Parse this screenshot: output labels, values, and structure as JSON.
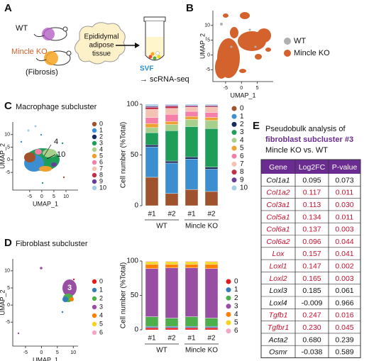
{
  "panel_labels": [
    "A",
    "B",
    "C",
    "D",
    "E"
  ],
  "schematic": {
    "wt": "WT",
    "ko": "Mincle KO",
    "fibrosis": "(Fibrosis)",
    "tissue": [
      "Epididymal",
      "adipose",
      "tissue"
    ],
    "svf": "SVF",
    "seq": "→ scRNA-seq"
  },
  "umaps": [
    {
      "xlabel": "UMAP_1",
      "ylabel": "UMAP_2",
      "xlim": [
        -9,
        10
      ],
      "ylim": [
        -9,
        15
      ],
      "xticks": [
        -5,
        0,
        5
      ],
      "yticks": [
        -5,
        0,
        5,
        10
      ],
      "legend": [
        {
          "name": "WT",
          "color": "#b0b0b0"
        },
        {
          "name": "Mincle KO",
          "color": "#d4622c"
        }
      ]
    },
    {
      "title": "Macrophage subcluster",
      "xlabel": "UMAP_1",
      "ylabel": "UMAP_2",
      "xlim": [
        -12,
        15
      ],
      "ylim": [
        -12,
        15
      ],
      "xticks": [
        -5,
        0,
        5,
        10
      ],
      "yticks": [
        -5,
        0,
        5,
        10
      ],
      "annotations": [
        "4",
        "10"
      ]
    },
    {
      "title": "Fibroblast subcluster",
      "xlabel": "UMAP_1",
      "ylabel": "UMAP_2",
      "xlim": [
        -9,
        11.5
      ],
      "ylim": [
        -12,
        13.5
      ],
      "xticks": [
        -5,
        0,
        5,
        10
      ],
      "yticks": [
        -5,
        0,
        5,
        10
      ],
      "annotations": [
        "3"
      ]
    }
  ],
  "chart_data": [
    {
      "type": "stacked_bar",
      "ylabel": "Cell number (%Total)",
      "categories": [
        "#1",
        "#2",
        "#1",
        "#2"
      ],
      "groups": [
        "WT",
        "Mincle KO"
      ],
      "ylim": [
        0,
        100
      ],
      "yticks": [
        0,
        50,
        100
      ],
      "legend": "right",
      "series": [
        {
          "name": "0",
          "color": "#a0522d",
          "values": [
            28,
            12,
            16,
            14
          ]
        },
        {
          "name": "1",
          "color": "#3b8fd0",
          "values": [
            30,
            30,
            30,
            22
          ]
        },
        {
          "name": "2",
          "color": "#1a2a5a",
          "values": [
            2,
            2,
            2,
            2
          ]
        },
        {
          "name": "3",
          "color": "#1f9e5a",
          "values": [
            12,
            30,
            30,
            38
          ]
        },
        {
          "name": "4",
          "color": "#a8d08d",
          "values": [
            5,
            6,
            7,
            8
          ]
        },
        {
          "name": "5",
          "color": "#f0a030",
          "values": [
            4,
            3,
            3,
            3
          ]
        },
        {
          "name": "6",
          "color": "#f57fa8",
          "values": [
            6,
            7,
            5,
            5
          ]
        },
        {
          "name": "7",
          "color": "#f4c2b2",
          "values": [
            8,
            6,
            4,
            5
          ]
        },
        {
          "name": "8",
          "color": "#c0304a",
          "values": [
            2,
            2,
            1,
            1
          ]
        },
        {
          "name": "9",
          "color": "#6a3d9a",
          "values": [
            1,
            1,
            1,
            1
          ]
        },
        {
          "name": "10",
          "color": "#a6cee3",
          "values": [
            2,
            1,
            1,
            1
          ]
        }
      ]
    },
    {
      "type": "stacked_bar",
      "ylabel": "Cell number (%Total)",
      "categories": [
        "#1",
        "#2",
        "#1",
        "#2"
      ],
      "groups": [
        "WT",
        "Mincle KO"
      ],
      "ylim": [
        0,
        100
      ],
      "yticks": [
        0,
        50,
        100
      ],
      "legend": "right",
      "series": [
        {
          "name": "0",
          "color": "#e41a1c",
          "values": [
            3,
            3,
            3,
            3
          ]
        },
        {
          "name": "1",
          "color": "#377eb8",
          "values": [
            2,
            2,
            2,
            2
          ]
        },
        {
          "name": "2",
          "color": "#4daf4a",
          "values": [
            14,
            12,
            14,
            12
          ]
        },
        {
          "name": "3",
          "color": "#984ea3",
          "values": [
            70,
            73,
            71,
            72
          ]
        },
        {
          "name": "4",
          "color": "#ff7f00",
          "values": [
            6,
            5,
            5,
            6
          ]
        },
        {
          "name": "5",
          "color": "#f2d41f",
          "values": [
            4,
            4,
            4,
            4
          ]
        },
        {
          "name": "6",
          "color": "#f4a6c8",
          "values": [
            1,
            1,
            1,
            1
          ]
        }
      ]
    }
  ],
  "table": {
    "caption": [
      "Pseudobulk analysis of",
      "fibroblast subcluster #3",
      "Mincle KO vs. WT"
    ],
    "header": [
      "Gene",
      "Log2FC",
      "P-value"
    ],
    "header_color": "#6b2c91",
    "rows": [
      {
        "gene": "Col1a1",
        "log2fc": "0.095",
        "p": "0.073",
        "color": "#111111"
      },
      {
        "gene": "Col1a2",
        "log2fc": "0.117",
        "p": "0.011",
        "color": "#c8102e"
      },
      {
        "gene": "Col3a1",
        "log2fc": "0.113",
        "p": "0.030",
        "color": "#c8102e"
      },
      {
        "gene": "Col5a1",
        "log2fc": "0.134",
        "p": "0.011",
        "color": "#c8102e"
      },
      {
        "gene": "Col6a1",
        "log2fc": "0.137",
        "p": "0.003",
        "color": "#c8102e"
      },
      {
        "gene": "Col6a2",
        "log2fc": "0.096",
        "p": "0.044",
        "color": "#c8102e"
      },
      {
        "gene": "Lox",
        "log2fc": "0.157",
        "p": "0.041",
        "color": "#c8102e"
      },
      {
        "gene": "Loxl1",
        "log2fc": "0.147",
        "p": "0.002",
        "color": "#c8102e"
      },
      {
        "gene": "Loxl2",
        "log2fc": "0.165",
        "p": "0.003",
        "color": "#c8102e"
      },
      {
        "gene": "Loxl3",
        "log2fc": "0.185",
        "p": "0.061",
        "color": "#111111"
      },
      {
        "gene": "Loxl4",
        "log2fc": "-0.009",
        "p": "0.966",
        "color": "#111111"
      },
      {
        "gene": "Tgfb1",
        "log2fc": "0.247",
        "p": "0.016",
        "color": "#c8102e"
      },
      {
        "gene": "Tgfbr1",
        "log2fc": "0.230",
        "p": "0.045",
        "color": "#c8102e"
      },
      {
        "gene": "Acta2",
        "log2fc": "0.680",
        "p": "0.239",
        "color": "#111111"
      },
      {
        "gene": "Osmr",
        "log2fc": "-0.038",
        "p": "0.589",
        "color": "#111111"
      }
    ]
  }
}
